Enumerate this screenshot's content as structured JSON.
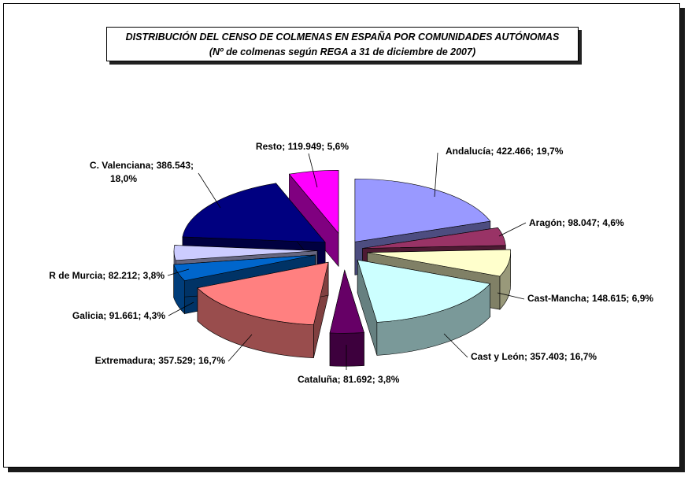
{
  "chart_data": {
    "type": "pie",
    "title": "DISTRIBUCIÓN DEL CENSO DE COLMENAS EN ESPAÑA POR COMUNIDADES AUTÓNOMAS",
    "subtitle": "(Nº de colmenas según REGA a 31 de diciembre de 2007)",
    "style": "3d-exploded",
    "slices": [
      {
        "name": "Andalucía",
        "value": 422466,
        "percent": 19.7,
        "label": "Andalucía; 422.466; 19,7%",
        "color": "#9999ff"
      },
      {
        "name": "Aragón",
        "value": 98047,
        "percent": 4.6,
        "label": "Aragón; 98.047; 4,6%",
        "color": "#993366"
      },
      {
        "name": "Cast-Mancha",
        "value": 148615,
        "percent": 6.9,
        "label": "Cast-Mancha; 148.615; 6,9%",
        "color": "#ffffcc"
      },
      {
        "name": "Cast y León",
        "value": 357403,
        "percent": 16.7,
        "label": "Cast y León; 357.403; 16,7%",
        "color": "#ccffff"
      },
      {
        "name": "Cataluña",
        "value": 81692,
        "percent": 3.8,
        "label": "Cataluña; 81.692; 3,8%",
        "color": "#660066"
      },
      {
        "name": "Extremadura",
        "value": 357529,
        "percent": 16.7,
        "label": "Extremadura; 357.529; 16,7%",
        "color": "#ff8080"
      },
      {
        "name": "Galicia",
        "value": 91661,
        "percent": 4.3,
        "label": "Galicia; 91.661; 4,3%",
        "color": "#0066cc"
      },
      {
        "name": "R de Murcia",
        "value": 82212,
        "percent": 3.8,
        "label": "R de Murcia; 82.212; 3,8%",
        "color": "#ccccff"
      },
      {
        "name": "C. Valenciana",
        "value": 386543,
        "percent": 18.0,
        "label": "C. Valenciana; 386.543;",
        "label2": "18,0%",
        "color": "#000080"
      },
      {
        "name": "Resto",
        "value": 119949,
        "percent": 5.6,
        "label": "Resto; 119.949; 5,6%",
        "color": "#ff00ff"
      }
    ]
  }
}
